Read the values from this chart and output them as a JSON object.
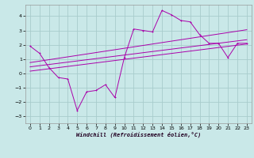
{
  "xlabel": "Windchill (Refroidissement éolien,°C)",
  "bg_color": "#c9e8e8",
  "line_color": "#aa00aa",
  "grid_color": "#a8cccc",
  "x_ticks": [
    0,
    1,
    2,
    3,
    4,
    5,
    6,
    7,
    8,
    9,
    10,
    11,
    12,
    13,
    14,
    15,
    16,
    17,
    18,
    19,
    20,
    21,
    22,
    23
  ],
  "ylim": [
    -3.5,
    4.8
  ],
  "xlim": [
    -0.5,
    23.5
  ],
  "yticks": [
    -3,
    -2,
    -1,
    0,
    1,
    2,
    3,
    4
  ],
  "jagged_y": [
    1.9,
    1.4,
    0.4,
    -0.3,
    -0.4,
    -2.6,
    -1.3,
    -1.2,
    -0.8,
    -1.7,
    1.1,
    3.1,
    3.0,
    2.9,
    4.4,
    4.1,
    3.7,
    3.6,
    2.7,
    2.1,
    2.1,
    1.1,
    2.1,
    2.1
  ],
  "line1_start": 0.15,
  "line1_end": 2.05,
  "line2_start": 0.45,
  "line2_end": 2.35,
  "line3_start": 0.75,
  "line3_end": 3.05
}
